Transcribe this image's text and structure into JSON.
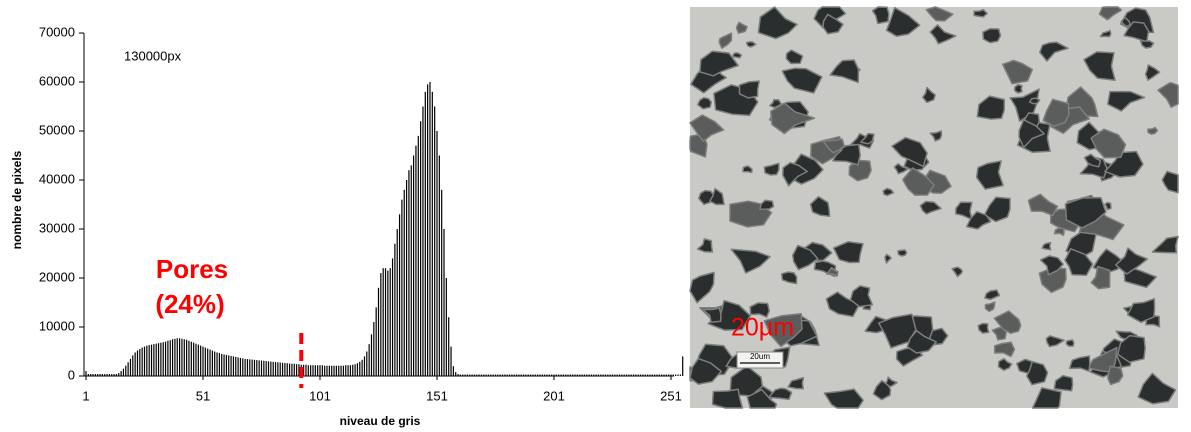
{
  "chart_data": {
    "type": "bar",
    "x_label": "niveau de gris",
    "y_label": "nombre de pixels",
    "pixel_count_label": "130000px",
    "pores_label": [
      "Pores",
      "(24%)"
    ],
    "threshold": 93,
    "color": "#000000",
    "threshold_color": "#ff0000",
    "xlim": [
      1,
      256
    ],
    "xticks": [
      1,
      51,
      101,
      151,
      201,
      251
    ],
    "ylim": [
      0,
      70000
    ],
    "yticks": [
      0,
      10000,
      20000,
      30000,
      40000,
      50000,
      60000,
      70000
    ],
    "x": [
      1,
      2,
      3,
      4,
      5,
      6,
      7,
      8,
      9,
      10,
      11,
      12,
      13,
      14,
      15,
      16,
      17,
      18,
      19,
      20,
      21,
      22,
      23,
      24,
      25,
      26,
      27,
      28,
      29,
      30,
      31,
      32,
      33,
      34,
      35,
      36,
      37,
      38,
      39,
      40,
      41,
      42,
      43,
      44,
      45,
      46,
      47,
      48,
      49,
      50,
      51,
      52,
      53,
      54,
      55,
      56,
      57,
      58,
      59,
      60,
      61,
      62,
      63,
      64,
      65,
      66,
      67,
      68,
      69,
      70,
      71,
      72,
      73,
      74,
      75,
      76,
      77,
      78,
      79,
      80,
      81,
      82,
      83,
      84,
      85,
      86,
      87,
      88,
      89,
      90,
      91,
      92,
      93,
      94,
      95,
      96,
      97,
      98,
      99,
      100,
      101,
      102,
      103,
      104,
      105,
      106,
      107,
      108,
      109,
      110,
      111,
      112,
      113,
      114,
      115,
      116,
      117,
      118,
      119,
      120,
      121,
      122,
      123,
      124,
      125,
      126,
      127,
      128,
      129,
      130,
      131,
      132,
      133,
      134,
      135,
      136,
      137,
      138,
      139,
      140,
      141,
      142,
      143,
      144,
      145,
      146,
      147,
      148,
      149,
      150,
      151,
      152,
      153,
      154,
      155,
      156,
      157,
      158,
      159,
      160,
      161,
      162,
      163,
      164,
      165,
      166,
      167,
      168,
      169,
      170,
      171,
      172,
      173,
      174,
      175,
      176,
      177,
      178,
      179,
      180,
      181,
      182,
      183,
      184,
      185,
      186,
      187,
      188,
      189,
      190,
      191,
      192,
      193,
      194,
      195,
      196,
      197,
      198,
      199,
      200,
      201,
      202,
      203,
      204,
      205,
      206,
      207,
      208,
      209,
      210,
      211,
      212,
      213,
      214,
      215,
      216,
      217,
      218,
      219,
      220,
      221,
      222,
      223,
      224,
      225,
      226,
      227,
      228,
      229,
      230,
      231,
      232,
      233,
      234,
      235,
      236,
      237,
      238,
      239,
      240,
      241,
      242,
      243,
      244,
      245,
      246,
      247,
      248,
      249,
      250,
      251,
      252,
      253,
      254,
      255,
      256
    ],
    "values": [
      1000,
      400,
      400,
      400,
      400,
      400,
      400,
      400,
      400,
      400,
      400,
      400,
      400,
      400,
      600,
      1000,
      1500,
      2100,
      2800,
      3500,
      4200,
      4800,
      5200,
      5500,
      5800,
      6000,
      6200,
      6300,
      6400,
      6500,
      6600,
      6700,
      6800,
      6900,
      7000,
      7200,
      7300,
      7500,
      7600,
      7700,
      7700,
      7600,
      7500,
      7400,
      7200,
      7000,
      6800,
      6600,
      6400,
      6200,
      6000,
      5800,
      5600,
      5400,
      5200,
      5000,
      4800,
      4700,
      4500,
      4400,
      4300,
      4200,
      4100,
      4000,
      3900,
      3800,
      3700,
      3600,
      3500,
      3450,
      3400,
      3350,
      3300,
      3250,
      3200,
      3150,
      3100,
      3050,
      3000,
      2950,
      2900,
      2850,
      2800,
      2750,
      2700,
      2650,
      2600,
      2550,
      2500,
      2500,
      2400,
      2400,
      2300,
      2300,
      2300,
      2200,
      2200,
      2200,
      2200,
      2200,
      2200,
      2200,
      2100,
      2100,
      2100,
      2100,
      2100,
      2100,
      2100,
      2100,
      2100,
      2200,
      2200,
      2200,
      2300,
      2400,
      2600,
      2900,
      3300,
      4000,
      5000,
      6500,
      8500,
      11000,
      14000,
      18000,
      21000,
      22000,
      22000,
      21500,
      22000,
      24000,
      27000,
      30000,
      33000,
      36000,
      38000,
      40000,
      42000,
      43000,
      45000,
      47000,
      49000,
      52000,
      55000,
      58000,
      59500,
      60000,
      58000,
      55000,
      50000,
      45000,
      38000,
      30000,
      20000,
      12000,
      6000,
      2000,
      800,
      400,
      300,
      300,
      300,
      300,
      300,
      300,
      300,
      300,
      300,
      300,
      300,
      300,
      300,
      300,
      300,
      300,
      300,
      300,
      300,
      300,
      300,
      300,
      300,
      300,
      300,
      300,
      300,
      300,
      300,
      300,
      300,
      300,
      300,
      300,
      300,
      300,
      300,
      300,
      300,
      300,
      300,
      300,
      300,
      300,
      300,
      300,
      300,
      300,
      300,
      300,
      300,
      300,
      300,
      300,
      300,
      300,
      300,
      300,
      300,
      300,
      300,
      300,
      300,
      300,
      300,
      300,
      300,
      300,
      300,
      300,
      300,
      300,
      300,
      300,
      300,
      300,
      300,
      300,
      300,
      300,
      300,
      300,
      300,
      300,
      300,
      300,
      300,
      300,
      300,
      300,
      300,
      300,
      300,
      300,
      300,
      4000
    ]
  },
  "image": {
    "scale_label": "20µm",
    "scale_bar_label": "20um"
  }
}
